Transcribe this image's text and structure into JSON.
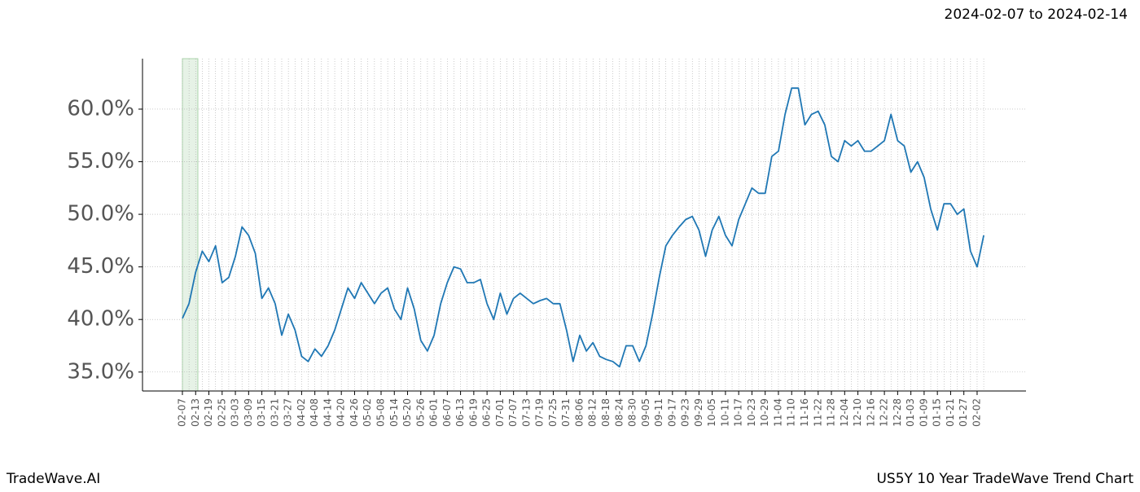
{
  "chart_data": {
    "type": "line",
    "title": "2024-02-07 to 2024-02-14",
    "footer_left": "TradeWave.AI",
    "footer_right": "US5Y 10 Year TradeWave Trend Chart",
    "categories": [
      "02-07",
      null,
      "02-13",
      null,
      "02-19",
      null,
      "02-25",
      null,
      "03-03",
      null,
      "03-09",
      null,
      "03-15",
      null,
      "03-21",
      null,
      "03-27",
      null,
      "04-02",
      null,
      "04-08",
      null,
      "04-14",
      null,
      "04-20",
      null,
      "04-26",
      null,
      "05-02",
      null,
      "05-08",
      null,
      "05-14",
      null,
      "05-20",
      null,
      "05-26",
      null,
      "06-01",
      null,
      "06-07",
      null,
      "06-13",
      null,
      "06-19",
      null,
      "06-25",
      null,
      "07-01",
      null,
      "07-07",
      null,
      "07-13",
      null,
      "07-19",
      null,
      "07-25",
      null,
      "07-31",
      null,
      "08-06",
      null,
      "08-12",
      null,
      "08-18",
      null,
      "08-24",
      null,
      "08-30",
      null,
      "09-05",
      null,
      "09-11",
      null,
      "09-17",
      null,
      "09-23",
      null,
      "09-29",
      null,
      "10-05",
      null,
      "10-11",
      null,
      "10-17",
      null,
      "10-23",
      null,
      "10-29",
      null,
      "11-04",
      null,
      "11-10",
      null,
      "11-16",
      null,
      "11-22",
      null,
      "11-28",
      null,
      "12-04",
      null,
      "12-10",
      null,
      "12-16",
      null,
      "12-22",
      null,
      "12-28",
      null,
      "01-03",
      null,
      "01-09",
      null,
      "01-15",
      null,
      "01-21",
      null,
      "01-27",
      null,
      "02-02",
      null
    ],
    "series": [
      {
        "color": "#1f77b4",
        "values": [
          40.1,
          41.5,
          44.5,
          46.5,
          45.5,
          47.0,
          43.5,
          44.0,
          46.0,
          48.8,
          48.0,
          46.3,
          42.0,
          43.0,
          41.5,
          38.5,
          40.5,
          39.0,
          36.5,
          36.0,
          37.2,
          36.5,
          37.5,
          39.0,
          41.0,
          43.0,
          42.0,
          43.5,
          42.5,
          41.5,
          42.5,
          43.0,
          41.0,
          40.0,
          43.0,
          41.0,
          38.0,
          37.0,
          38.5,
          41.5,
          43.5,
          45.0,
          44.8,
          43.5,
          43.5,
          43.8,
          41.5,
          40.0,
          42.5,
          40.5,
          42.0,
          42.5,
          42.0,
          41.5,
          41.8,
          42.0,
          41.5,
          41.5,
          39.0,
          36.0,
          38.5,
          37.0,
          37.8,
          36.5,
          36.2,
          36.0,
          35.5,
          37.5,
          37.5,
          36.0,
          37.5,
          40.5,
          44.0,
          47.0,
          48.0,
          48.8,
          49.5,
          49.8,
          48.5,
          46.0,
          48.5,
          49.8,
          48.0,
          47.0,
          49.5,
          51.0,
          52.5,
          52.0,
          52.0,
          55.5,
          56.0,
          59.5,
          62.0,
          62.0,
          58.5,
          59.5,
          59.8,
          58.5,
          55.5,
          55.0,
          57.0,
          56.5,
          57.0,
          56.0,
          56.0,
          56.5,
          57.0,
          59.5,
          57.0,
          56.5,
          54.0,
          55.0,
          53.5,
          50.5,
          48.5,
          51.0,
          51.0,
          50.0,
          50.5,
          46.5,
          45.0,
          48.0
        ]
      }
    ],
    "ylim": [
      33.2,
      64.8
    ],
    "yticks": [
      {
        "value": 35,
        "label": "35.0%"
      },
      {
        "value": 40,
        "label": "40.0%"
      },
      {
        "value": 45,
        "label": "45.0%"
      },
      {
        "value": 50,
        "label": "50.0%"
      },
      {
        "value": 55,
        "label": "55.0%"
      },
      {
        "value": 60,
        "label": "60.0%"
      }
    ],
    "grid": true,
    "highlight_color": "#e6f2e6"
  }
}
